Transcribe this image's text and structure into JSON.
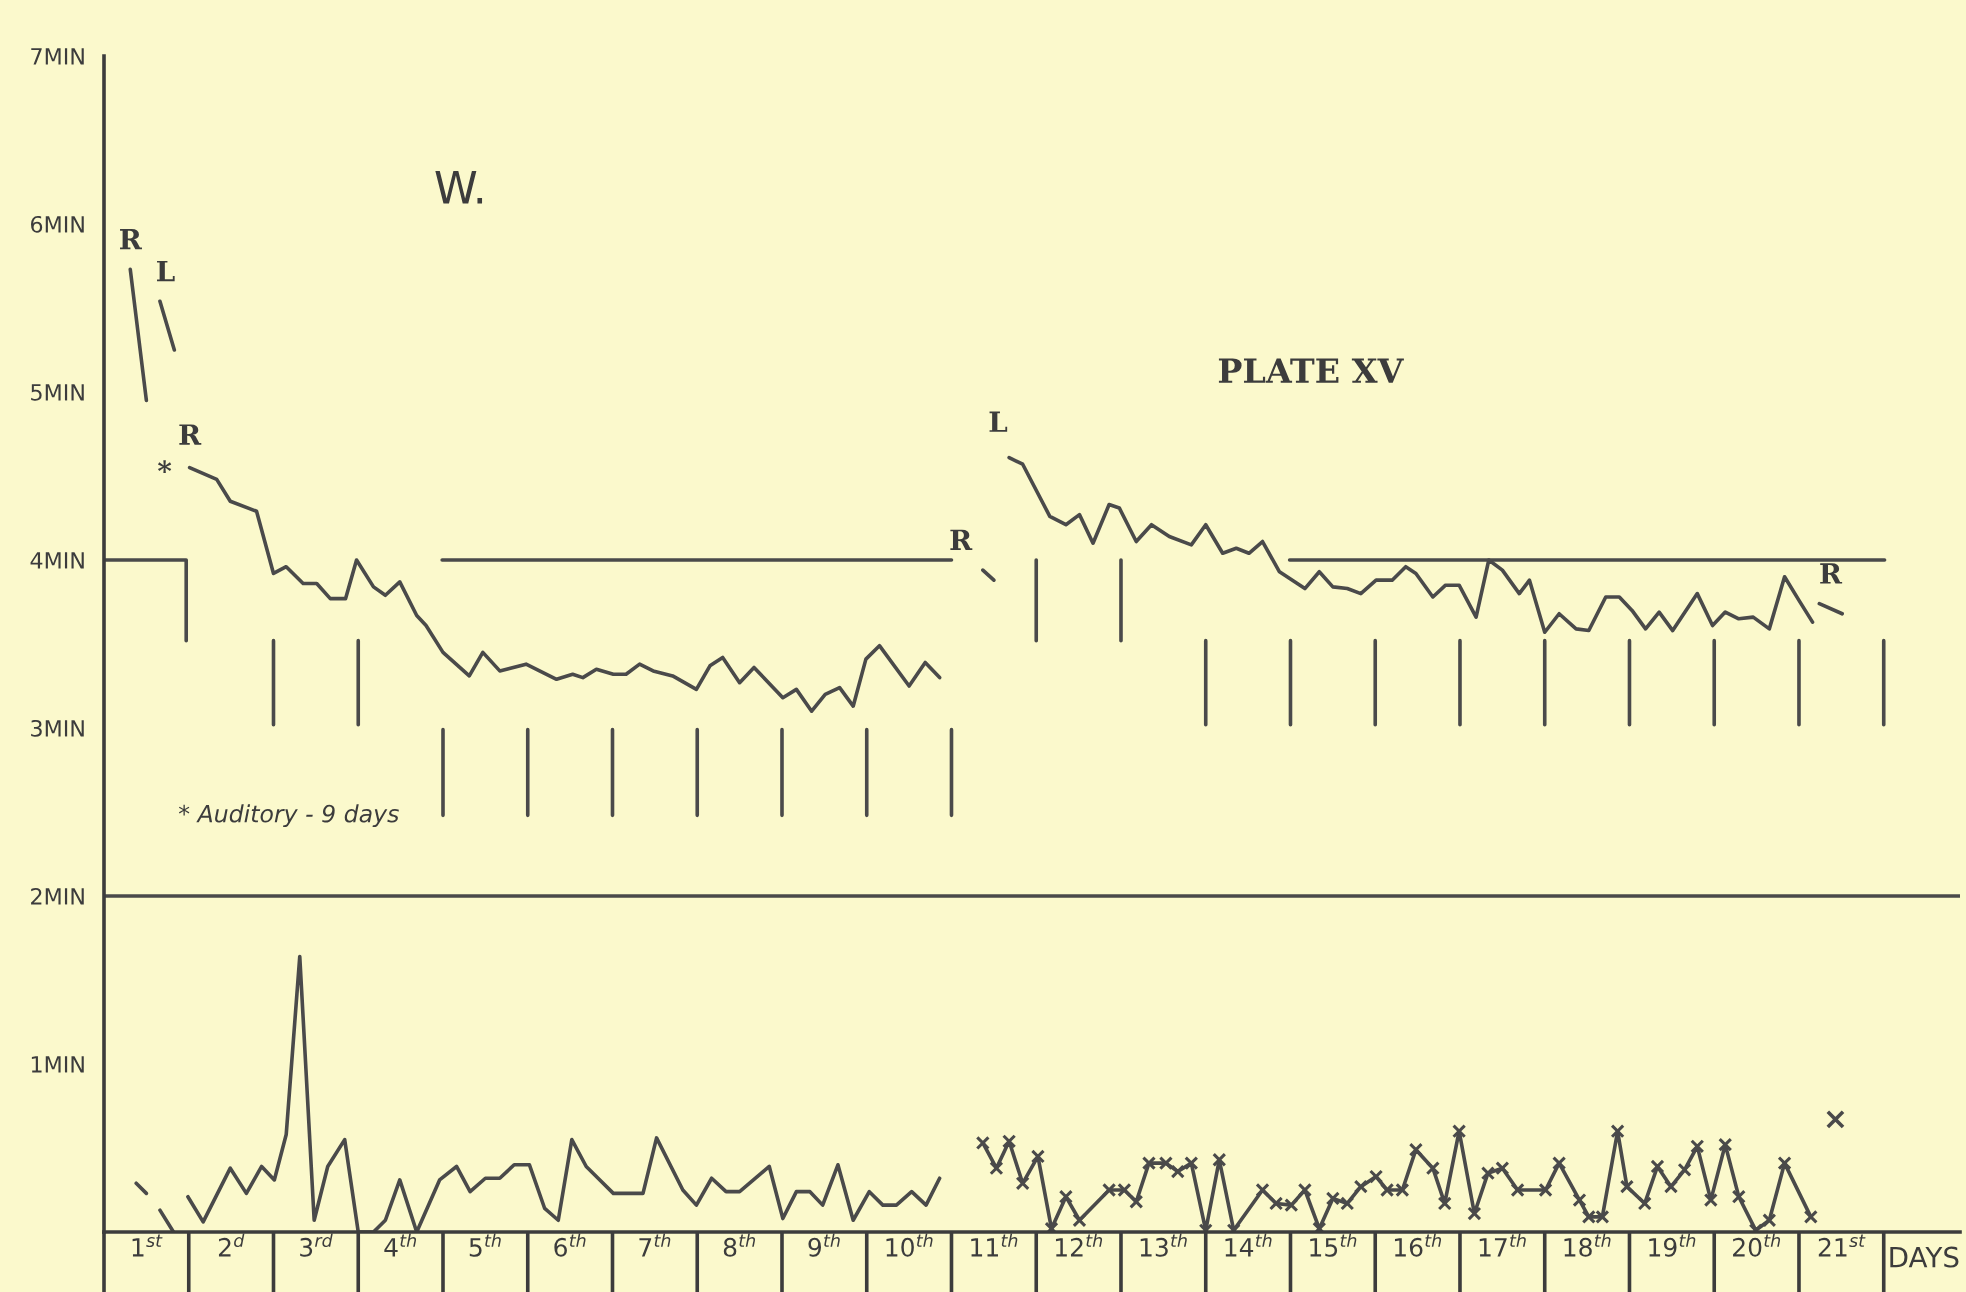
{
  "chart_data": {
    "type": "line",
    "title": "PLATE XV",
    "subtitle": "W.",
    "xlabel": "DAYS",
    "xlim": [
      0,
      21.9
    ],
    "ylim": [
      0,
      7
    ],
    "xticks": [
      {
        "value": 0.5,
        "label": "1$^{st}$"
      },
      {
        "value": 1.5,
        "label": "2$^{d}$"
      },
      {
        "value": 2.5,
        "label": "3$^{rd}$"
      },
      {
        "value": 3.5,
        "label": "4$^{th}$"
      },
      {
        "value": 4.5,
        "label": "5$^{th}$"
      },
      {
        "value": 5.5,
        "label": "6$^{th}$"
      },
      {
        "value": 6.5,
        "label": "7$^{th}$"
      },
      {
        "value": 7.5,
        "label": "8$^{th}$"
      },
      {
        "value": 8.5,
        "label": "9$^{th}$"
      },
      {
        "value": 9.5,
        "label": "10$^{th}$"
      },
      {
        "value": 10.5,
        "label": "11$^{th}$"
      },
      {
        "value": 11.5,
        "label": "12$^{th}$"
      },
      {
        "value": 12.5,
        "label": "13$^{th}$"
      },
      {
        "value": 13.5,
        "label": "14$^{th}$"
      },
      {
        "value": 14.5,
        "label": "15$^{th}$"
      },
      {
        "value": 15.5,
        "label": "16$^{th}$"
      },
      {
        "value": 16.5,
        "label": "17$^{th}$"
      },
      {
        "value": 17.5,
        "label": "18$^{th}$"
      },
      {
        "value": 18.5,
        "label": "19$^{th}$"
      },
      {
        "value": 19.5,
        "label": "20$^{th}$"
      },
      {
        "value": 20.5,
        "label": "21$^{st}$"
      }
    ],
    "yticks": [
      {
        "value": 1,
        "label": "1MIN"
      },
      {
        "value": 2,
        "label": "2MIN"
      },
      {
        "value": 3,
        "label": "3MIN"
      },
      {
        "value": 4,
        "label": "4MIN"
      },
      {
        "value": 5,
        "label": "5MIN"
      },
      {
        "value": 6,
        "label": "6MIN"
      },
      {
        "value": 7,
        "label": "7MIN"
      }
    ],
    "ref_lines": [
      {
        "axis": "y",
        "value": 2,
        "color": "#4a4a4a"
      }
    ],
    "series": [
      {
        "color": "#4a4a4a",
        "x": [
          1.01,
          1.33,
          1.49,
          1.8,
          2.0,
          2.15,
          2.35,
          2.51,
          2.67,
          2.85,
          2.98,
          3.18,
          3.32,
          3.49,
          3.69,
          3.8,
          4.0,
          4.31,
          4.47,
          4.67,
          4.98,
          5.34,
          5.53,
          5.65,
          5.81,
          6.01,
          6.16,
          6.32,
          6.48,
          6.71,
          6.99,
          7.15,
          7.3,
          7.5,
          7.67,
          8.01,
          8.17,
          8.35,
          8.51,
          8.68,
          8.84,
          8.99,
          9.15,
          9.5,
          9.69,
          9.86
        ],
        "values": [
          4.55,
          4.48,
          4.35,
          4.29,
          3.92,
          3.96,
          3.86,
          3.86,
          3.77,
          3.77,
          4.0,
          3.84,
          3.79,
          3.87,
          3.67,
          3.61,
          3.45,
          3.31,
          3.45,
          3.34,
          3.38,
          3.29,
          3.32,
          3.3,
          3.35,
          3.32,
          3.32,
          3.38,
          3.34,
          3.31,
          3.23,
          3.37,
          3.42,
          3.27,
          3.36,
          3.18,
          3.23,
          3.1,
          3.2,
          3.24,
          3.13,
          3.41,
          3.49,
          3.25,
          3.39,
          3.3
        ]
      },
      {
        "color": "#4a4a4a",
        "x": [
          10.68,
          10.84,
          11.16,
          11.35,
          11.51,
          11.67,
          11.86,
          11.98,
          12.18,
          12.36,
          12.57,
          12.83,
          13.0,
          13.2,
          13.36,
          13.51,
          13.67,
          13.87,
          14.17,
          14.34,
          14.5,
          14.67,
          14.83,
          15.01,
          15.2,
          15.36,
          15.48,
          15.68,
          15.83,
          15.99,
          16.19,
          16.34,
          16.5,
          16.7,
          16.82,
          17.0,
          17.17,
          17.37,
          17.52,
          17.72,
          17.88,
          18.03,
          18.19,
          18.35,
          18.51,
          18.8,
          18.98,
          19.13,
          19.29,
          19.46,
          19.65,
          19.83,
          20.0,
          20.16
        ],
        "values": [
          4.61,
          4.57,
          4.26,
          4.21,
          4.27,
          4.1,
          4.33,
          4.31,
          4.11,
          4.21,
          4.14,
          4.09,
          4.21,
          4.04,
          4.07,
          4.04,
          4.11,
          3.93,
          3.83,
          3.93,
          3.84,
          3.83,
          3.8,
          3.88,
          3.88,
          3.96,
          3.92,
          3.78,
          3.85,
          3.85,
          3.66,
          4.0,
          3.94,
          3.8,
          3.88,
          3.57,
          3.68,
          3.59,
          3.58,
          3.78,
          3.78,
          3.7,
          3.59,
          3.69,
          3.58,
          3.8,
          3.61,
          3.69,
          3.65,
          3.66,
          3.59,
          3.9,
          3.76,
          3.63
        ]
      },
      {
        "color": "#4a4a4a",
        "x": [
          0.31,
          0.5,
          null,
          0.66,
          0.83,
          null,
          10.37,
          10.5,
          null,
          20.24,
          20.51
        ],
        "values": [
          5.73,
          4.95,
          null,
          5.54,
          5.25,
          null,
          3.94,
          3.88,
          null,
          3.74,
          3.68
        ]
      },
      {
        "color": "#4a4a4a",
        "x": [
          0,
          0.97,
          0.97,
          null,
          3.99,
          10.0,
          null,
          13.99,
          21.01
        ],
        "values": [
          4,
          4,
          3.52,
          null,
          4,
          4,
          null,
          4,
          4
        ]
      },
      {
        "color": "#4a4a4a",
        "x": [
          2,
          2,
          null,
          3,
          3,
          null,
          4,
          4,
          null,
          5,
          5,
          null,
          6,
          6,
          null,
          7,
          7,
          null,
          8,
          8,
          null,
          9,
          9,
          null,
          10,
          10,
          null,
          11,
          11,
          null,
          12,
          12,
          null,
          13,
          13,
          null,
          14,
          14,
          null,
          15,
          15,
          null,
          16,
          16,
          null,
          17,
          17,
          null,
          18,
          18,
          null,
          19,
          19,
          null,
          20,
          20,
          null,
          21,
          21
        ],
        "values": [
          3.52,
          3.02,
          null,
          3.52,
          3.02,
          null,
          2.99,
          2.48,
          null,
          2.99,
          2.48,
          null,
          2.99,
          2.48,
          null,
          2.99,
          2.48,
          null,
          2.99,
          2.48,
          null,
          2.99,
          2.48,
          null,
          2.99,
          2.48,
          null,
          4.0,
          3.52,
          null,
          4.0,
          3.52,
          null,
          3.52,
          3.02,
          null,
          3.52,
          3.02,
          null,
          3.52,
          3.02,
          null,
          3.52,
          3.02,
          null,
          3.52,
          3.02,
          null,
          3.52,
          3.02,
          null,
          3.52,
          3.02,
          null,
          3.52,
          3.02,
          null,
          3.52,
          3.02
        ]
      },
      {
        "color": "#4a4a4a",
        "x": [
          0.99,
          1.17,
          1.49,
          1.68,
          1.86,
          2.01,
          2.15,
          2.31,
          2.48,
          2.64,
          2.84,
          3.0,
          3.18,
          3.32,
          3.49,
          3.69,
          3.96,
          4.16,
          4.32,
          4.5,
          4.67,
          4.84,
          5.02,
          5.2,
          5.36,
          5.52,
          5.69,
          5.83,
          6.01,
          6.36,
          6.52,
          6.83,
          6.99,
          7.17,
          7.34,
          7.5,
          7.85,
          8.01,
          8.17,
          8.33,
          8.48,
          8.66,
          8.84,
          9.03,
          9.19,
          9.35,
          9.53,
          9.7,
          9.86
        ],
        "values": [
          0.21,
          0.06,
          0.38,
          0.23,
          0.39,
          0.31,
          0.58,
          1.64,
          0.07,
          0.39,
          0.55,
          0,
          0,
          0.07,
          0.31,
          0,
          0.31,
          0.39,
          0.24,
          0.32,
          0.32,
          0.4,
          0.4,
          0.14,
          0.07,
          0.55,
          0.39,
          0.32,
          0.23,
          0.23,
          0.56,
          0.25,
          0.16,
          0.32,
          0.24,
          0.24,
          0.39,
          0.08,
          0.24,
          0.24,
          0.16,
          0.4,
          0.07,
          0.24,
          0.16,
          0.16,
          0.24,
          0.16,
          0.32
        ]
      },
      {
        "color": "#4a4a4a",
        "x": [
          0.38,
          0.5,
          null,
          0.66,
          0.82
        ],
        "values": [
          0.29,
          0.23,
          null,
          0.13,
          0.0
        ]
      },
      {
        "color": "#4a4a4a",
        "marker": "cross",
        "x": [
          10.37,
          10.53,
          10.68,
          10.84,
          11.02,
          11.18,
          11.35,
          11.51,
          11.86,
          12.04,
          12.18,
          12.33,
          12.53,
          12.67,
          12.83,
          13.0,
          13.16,
          13.33,
          13.67,
          13.83,
          14.01,
          14.17,
          14.34,
          14.5,
          14.67,
          14.83,
          15.01,
          15.14,
          15.32,
          15.48,
          15.68,
          15.82,
          15.99,
          16.17,
          16.33,
          16.5,
          16.68,
          17.01,
          17.17,
          17.41,
          17.52,
          17.68,
          17.86,
          17.97,
          18.18,
          18.33,
          18.49,
          18.65,
          18.8,
          18.96,
          19.13,
          19.29,
          19.49,
          19.65,
          19.83,
          20.14
        ],
        "values": [
          0.53,
          0.38,
          0.54,
          0.29,
          0.45,
          0.02,
          0.21,
          0.07,
          0.25,
          0.25,
          0.18,
          0.41,
          0.41,
          0.36,
          0.41,
          0.01,
          0.43,
          0.01,
          0.25,
          0.17,
          0.16,
          0.25,
          0.02,
          0.2,
          0.17,
          0.27,
          0.33,
          0.25,
          0.25,
          0.49,
          0.38,
          0.17,
          0.6,
          0.11,
          0.35,
          0.38,
          0.25,
          0.25,
          0.41,
          0.19,
          0.09,
          0.09,
          0.6,
          0.27,
          0.17,
          0.39,
          0.27,
          0.37,
          0.51,
          0.19,
          0.52,
          0.21,
          0.01,
          0.07,
          0.41,
          0.09
        ]
      },
      {
        "type": "scatter",
        "color": "#4a4a4a",
        "marker": "cross",
        "x": [
          20.43
        ],
        "values": [
          0.67
        ]
      }
    ],
    "annotations": [
      {
        "text": "R",
        "x": 0.31,
        "y": 5.73
      },
      {
        "text": "L",
        "x": 0.66,
        "y": 5.54
      },
      {
        "text": "R",
        "x": 1.01,
        "y": 4.55
      },
      {
        "text": "*",
        "x": 1.01,
        "y": 4.55
      },
      {
        "text": "R",
        "x": 10.37,
        "y": 3.94
      },
      {
        "text": "L",
        "x": 10.68,
        "y": 4.61
      },
      {
        "text": "R",
        "x": 20.24,
        "y": 3.74
      },
      "* Auditory - 9 days"
    ]
  }
}
